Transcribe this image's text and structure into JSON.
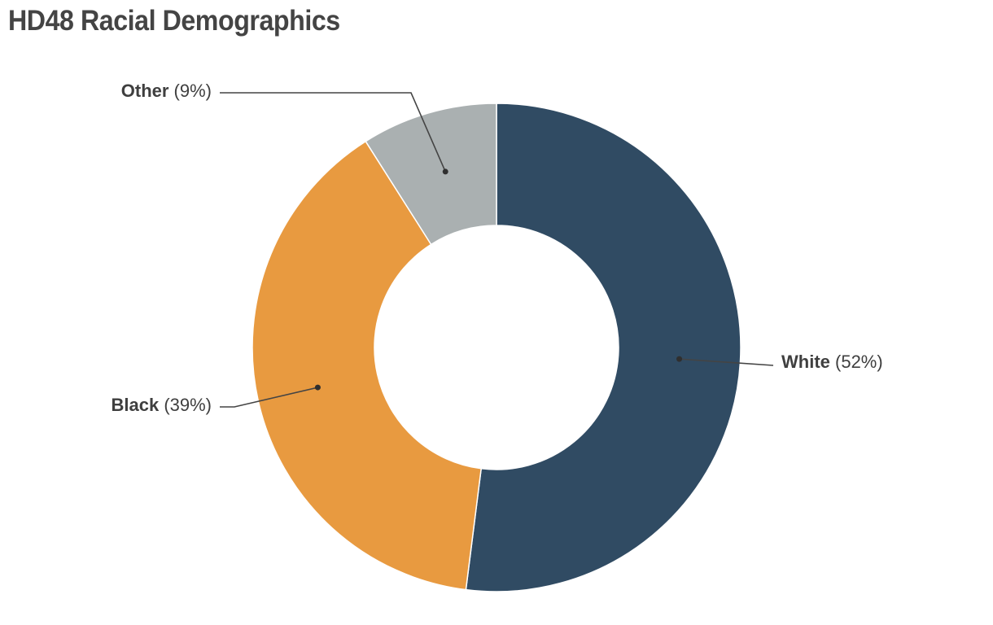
{
  "chart_data": {
    "type": "pie",
    "variant": "donut",
    "title": "HD48 Racial Demographics",
    "slices": [
      {
        "label": "White",
        "value": 52,
        "display": "(52%)",
        "color": "#304b63"
      },
      {
        "label": "Black",
        "value": 39,
        "display": "(39%)",
        "color": "#e89a40"
      },
      {
        "label": "Other",
        "value": 9,
        "display": "(9%)",
        "color": "#aab0b1"
      }
    ],
    "start": "top",
    "direction": "clockwise",
    "legend": "none",
    "labels": "outside-with-leader-lines"
  }
}
